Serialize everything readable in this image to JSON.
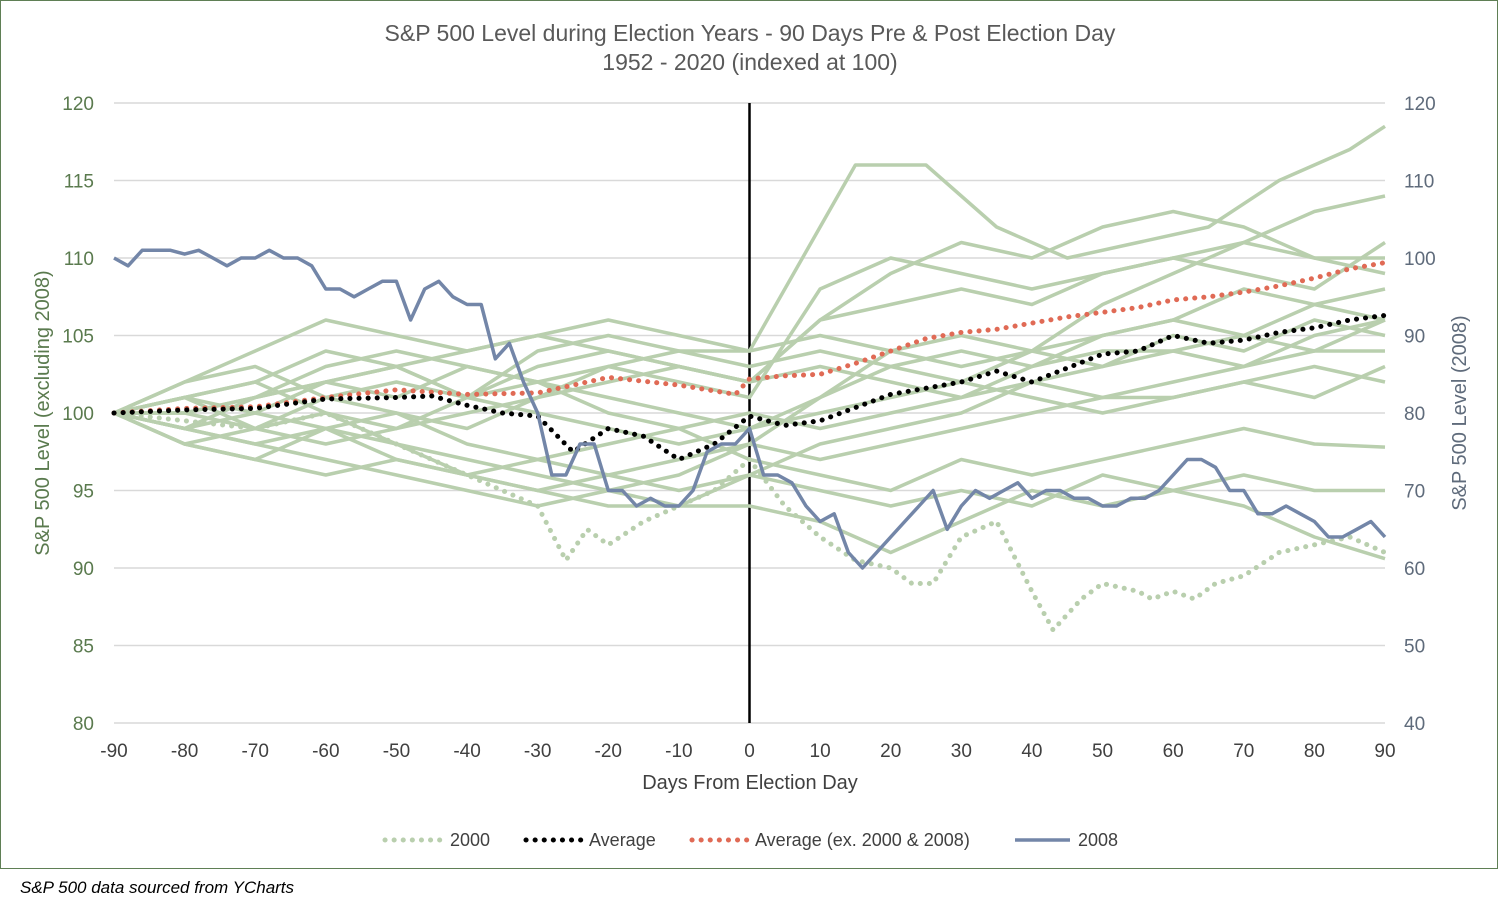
{
  "chart_data": {
    "type": "line",
    "title": "S&P 500 Level during Election Years - 90 Days Pre & Post Election Day",
    "subtitle": "1952 - 2020 (indexed at 100)",
    "xlabel": "Days From Election Day",
    "ylabel_left": "S&P 500 Level (excluding 2008)",
    "ylabel_right": "S&P 500 Level (2008)",
    "xlim": [
      -90,
      90
    ],
    "ylim_left": [
      80,
      120
    ],
    "ylim_right": [
      40,
      120
    ],
    "x_ticks": [
      "-90",
      "-80",
      "-70",
      "-60",
      "-50",
      "-40",
      "-30",
      "-20",
      "-10",
      "0",
      "10",
      "20",
      "30",
      "40",
      "50",
      "60",
      "70",
      "80",
      "90"
    ],
    "y_ticks_left": [
      "120",
      "115",
      "110",
      "105",
      "100",
      "95",
      "90",
      "85",
      "80"
    ],
    "y_ticks_right": [
      "120",
      "110",
      "100",
      "90",
      "80",
      "70",
      "60",
      "50",
      "40"
    ],
    "grid": true,
    "vertical_marker_x": 0,
    "legend_position": "bottom",
    "colors": {
      "background_years": "#b9cfae",
      "s2000": "#b9cfae",
      "average": "#000000",
      "average_ex": "#e06a55",
      "s2008": "#7386a8",
      "gridline": "#d9d9d9"
    },
    "background_series": [
      {
        "x": [
          -90,
          -80,
          -70,
          -60,
          -50,
          -45,
          -40,
          -30,
          -20,
          -10,
          0,
          10,
          20,
          30,
          40,
          50,
          60,
          70,
          80,
          90
        ],
        "values": [
          100,
          101,
          102,
          104,
          103,
          102,
          101,
          103,
          104,
          103,
          102,
          106,
          109,
          111,
          110,
          112,
          113,
          112,
          110,
          110
        ]
      },
      {
        "x": [
          -90,
          -80,
          -70,
          -60,
          -50,
          -40,
          -30,
          -20,
          -10,
          0,
          10,
          15,
          25,
          35,
          45,
          55,
          65,
          75,
          85,
          90
        ],
        "values": [
          100,
          99,
          101,
          102,
          103,
          101,
          104,
          105,
          104,
          104,
          112,
          116,
          116,
          112,
          110,
          111,
          112,
          115,
          117,
          118.5
        ]
      },
      {
        "x": [
          -90,
          -80,
          -70,
          -60,
          -50,
          -40,
          -30,
          -20,
          -10,
          0,
          10,
          20,
          30,
          40,
          50,
          60,
          70,
          80,
          90
        ],
        "values": [
          100,
          102,
          103,
          101,
          100,
          99,
          101,
          103,
          102,
          101,
          108,
          110,
          109,
          108,
          109,
          110,
          111,
          113,
          114
        ]
      },
      {
        "x": [
          -90,
          -80,
          -70,
          -60,
          -50,
          -40,
          -30,
          -20,
          -10,
          0,
          10,
          20,
          30,
          40,
          50,
          60,
          70,
          80,
          90
        ],
        "values": [
          100,
          98,
          99,
          100,
          98,
          97,
          96,
          95,
          96,
          98,
          101,
          103,
          104,
          103,
          105,
          106,
          108,
          107,
          106
        ]
      },
      {
        "x": [
          -90,
          -80,
          -70,
          -60,
          -50,
          -40,
          -30,
          -20,
          -10,
          0,
          10,
          20,
          30,
          40,
          50,
          60,
          70,
          80,
          90
        ],
        "values": [
          100,
          101,
          100,
          102,
          101,
          103,
          102,
          101,
          100,
          99,
          101,
          104,
          105,
          104,
          107,
          109,
          111,
          110,
          109
        ]
      },
      {
        "x": [
          -90,
          -80,
          -70,
          -60,
          -50,
          -40,
          -30,
          -20,
          -10,
          0,
          10,
          20,
          30,
          40,
          50,
          60,
          70,
          80,
          90
        ],
        "values": [
          100,
          99,
          98,
          97,
          96,
          95,
          94,
          95,
          94,
          96,
          98,
          99,
          100,
          102,
          103,
          104,
          105,
          104,
          106
        ]
      },
      {
        "x": [
          -90,
          -80,
          -70,
          -60,
          -50,
          -40,
          -30,
          -20,
          -10,
          0,
          10,
          20,
          30,
          40,
          50,
          60,
          70,
          80,
          90
        ],
        "values": [
          100,
          100,
          101,
          103,
          104,
          103,
          102,
          100,
          99,
          97,
          96,
          95,
          97,
          96,
          97,
          98,
          99,
          98,
          97.8
        ]
      },
      {
        "x": [
          -90,
          -80,
          -70,
          -60,
          -50,
          -40,
          -30,
          -20,
          -10,
          0,
          10,
          20,
          30,
          40,
          50,
          60,
          70,
          80,
          90
        ],
        "values": [
          100,
          98,
          97,
          99,
          98,
          96,
          95,
          94,
          94,
          94,
          93,
          91,
          93,
          95,
          94,
          95,
          94,
          92,
          90.6
        ]
      },
      {
        "x": [
          -90,
          -80,
          -70,
          -60,
          -50,
          -40,
          -30,
          -20,
          -10,
          0,
          10,
          20,
          30,
          40,
          50,
          60,
          70,
          80,
          90
        ],
        "values": [
          100,
          101,
          99,
          98,
          99,
          100,
          101,
          102,
          103,
          102,
          103,
          102,
          101,
          103,
          104,
          104,
          103,
          105,
          106
        ]
      },
      {
        "x": [
          -90,
          -80,
          -70,
          -60,
          -50,
          -40,
          -30,
          -20,
          -10,
          0,
          10,
          20,
          30,
          40,
          50,
          60,
          70,
          80,
          90
        ],
        "values": [
          100,
          102,
          104,
          106,
          105,
          104,
          105,
          106,
          105,
          104,
          105,
          104,
          103,
          104,
          105,
          106,
          105,
          107,
          108
        ]
      },
      {
        "x": [
          -90,
          -80,
          -70,
          -60,
          -50,
          -40,
          -30,
          -20,
          -10,
          0,
          10,
          20,
          30,
          40,
          50,
          60,
          70,
          80,
          90
        ],
        "values": [
          100,
          99,
          100,
          99,
          100,
          98,
          97,
          98,
          99,
          100,
          99,
          100,
          101,
          102,
          101,
          102,
          103,
          104,
          104
        ]
      },
      {
        "x": [
          -90,
          -80,
          -70,
          -60,
          -50,
          -40,
          -30,
          -20,
          -10,
          0,
          10,
          20,
          30,
          40,
          50,
          60,
          70,
          80,
          90
        ],
        "values": [
          100,
          100,
          99,
          101,
          102,
          101,
          100,
          99,
          98,
          99,
          100,
          101,
          102,
          101,
          100,
          101,
          102,
          101,
          103
        ]
      },
      {
        "x": [
          -90,
          -80,
          -70,
          -60,
          -50,
          -40,
          -30,
          -20,
          -10,
          0,
          10,
          20,
          30,
          40,
          50,
          60,
          70,
          80,
          90
        ],
        "values": [
          100,
          101,
          102,
          100,
          99,
          101,
          102,
          103,
          104,
          103,
          104,
          103,
          102,
          104,
          103,
          105,
          104,
          106,
          105
        ]
      },
      {
        "x": [
          -90,
          -80,
          -70,
          -60,
          -50,
          -40,
          -30,
          -20,
          -10,
          0,
          10,
          20,
          30,
          40,
          50,
          60,
          70,
          80,
          90
        ],
        "values": [
          100,
          98,
          97,
          96,
          97,
          96,
          95,
          96,
          97,
          98,
          97,
          98,
          99,
          100,
          101,
          101,
          102,
          103,
          102
        ]
      },
      {
        "x": [
          -90,
          -80,
          -70,
          -60,
          -50,
          -40,
          -30,
          -20,
          -10,
          0,
          10,
          20,
          30,
          40,
          50,
          60,
          70,
          80,
          90
        ],
        "values": [
          100,
          100,
          101,
          102,
          103,
          104,
          105,
          104,
          103,
          102,
          106,
          107,
          108,
          107,
          109,
          110,
          109,
          108,
          111
        ]
      },
      {
        "x": [
          -90,
          -80,
          -70,
          -60,
          -50,
          -40,
          -30,
          -20,
          -10,
          0,
          10,
          20,
          30,
          40,
          50,
          60,
          70,
          80,
          90
        ],
        "values": [
          100,
          99,
          98,
          99,
          97,
          96,
          97,
          96,
          95,
          96,
          95,
          94,
          95,
          94,
          96,
          95,
          96,
          95,
          95
        ]
      }
    ],
    "series": [
      {
        "name": "2000",
        "style": "dotted",
        "axis": "left",
        "x": [
          -90,
          -80,
          -70,
          -60,
          -50,
          -40,
          -35,
          -30,
          -26,
          -23,
          -20,
          -15,
          -10,
          -5,
          0,
          5,
          10,
          15,
          20,
          23,
          26,
          30,
          35,
          40,
          43,
          47,
          50,
          55,
          57,
          60,
          63,
          66,
          70,
          75,
          80,
          85,
          90
        ],
        "values": [
          100,
          99.5,
          99,
          100,
          98,
          96,
          95,
          94,
          90.5,
          92.5,
          91.5,
          93,
          94,
          95,
          97,
          94,
          92,
          90.5,
          90,
          89,
          89,
          92,
          93,
          88.5,
          86,
          88,
          89,
          88.5,
          88,
          88.5,
          88,
          89,
          89.5,
          91,
          91.5,
          92,
          91
        ]
      },
      {
        "name": "Average",
        "style": "dotted",
        "axis": "left",
        "x": [
          -90,
          -80,
          -70,
          -60,
          -50,
          -45,
          -40,
          -35,
          -30,
          -25,
          -20,
          -15,
          -10,
          -5,
          0,
          5,
          10,
          20,
          30,
          35,
          40,
          50,
          55,
          60,
          65,
          70,
          75,
          80,
          85,
          90
        ],
        "values": [
          100,
          100.2,
          100.3,
          100.9,
          101,
          101.1,
          100.5,
          100,
          99.8,
          97.5,
          99,
          98.5,
          97,
          98,
          99.8,
          99.2,
          99.5,
          101.2,
          102,
          102.7,
          102,
          103.8,
          104,
          105,
          104.5,
          104.7,
          105.2,
          105.5,
          106,
          106.3
        ]
      },
      {
        "name": "Average (ex. 2000 & 2008)",
        "style": "dotted",
        "axis": "left",
        "x": [
          -90,
          -80,
          -70,
          -60,
          -50,
          -40,
          -30,
          -20,
          -10,
          -2,
          0,
          5,
          10,
          15,
          20,
          25,
          30,
          35,
          40,
          45,
          50,
          55,
          60,
          65,
          70,
          75,
          80,
          85,
          90
        ],
        "values": [
          100,
          100.3,
          100.4,
          101,
          101.5,
          101.2,
          101.3,
          102.3,
          101.8,
          101.2,
          102.2,
          102.4,
          102.5,
          103.2,
          104,
          104.8,
          105.2,
          105.4,
          105.8,
          106.2,
          106.5,
          106.8,
          107.3,
          107.5,
          107.8,
          108.2,
          108.7,
          109.3,
          109.7
        ]
      },
      {
        "name": "2008",
        "style": "solid",
        "axis": "right",
        "x": [
          -90,
          -88,
          -86,
          -84,
          -82,
          -80,
          -78,
          -76,
          -74,
          -72,
          -70,
          -68,
          -66,
          -64,
          -62,
          -60,
          -58,
          -56,
          -54,
          -52,
          -50,
          -48,
          -46,
          -44,
          -42,
          -40,
          -38,
          -36,
          -34,
          -32,
          -30,
          -28,
          -26,
          -24,
          -22,
          -20,
          -18,
          -16,
          -14,
          -12,
          -10,
          -8,
          -6,
          -4,
          -2,
          0,
          2,
          4,
          6,
          8,
          10,
          12,
          14,
          16,
          18,
          20,
          22,
          24,
          26,
          28,
          30,
          32,
          34,
          36,
          38,
          40,
          42,
          44,
          46,
          48,
          50,
          52,
          54,
          56,
          58,
          60,
          62,
          64,
          66,
          68,
          70,
          72,
          74,
          76,
          78,
          80,
          82,
          84,
          86,
          88,
          90
        ],
        "values": [
          100,
          99,
          101,
          101,
          101,
          100.5,
          101,
          100,
          99,
          100,
          100,
          101,
          100,
          100,
          99,
          96,
          96,
          95,
          96,
          97,
          97,
          92,
          96,
          97,
          95,
          94,
          94,
          87,
          89,
          84,
          80,
          72,
          72,
          76,
          76,
          70,
          70,
          68,
          69,
          68,
          68,
          70,
          75,
          76,
          76,
          78,
          72,
          72,
          71,
          68,
          66,
          67,
          62,
          60,
          62,
          64,
          66,
          68,
          70,
          65,
          68,
          70,
          69,
          70,
          71,
          69,
          70,
          70,
          69,
          69,
          68,
          68,
          69,
          69,
          70,
          72,
          74,
          74,
          73,
          70,
          70,
          67,
          67,
          68,
          67,
          66,
          64,
          64,
          65,
          66,
          64
        ]
      }
    ],
    "legend": [
      "2000",
      "Average",
      "Average (ex. 2000 & 2008)",
      "2008"
    ],
    "source_note": "S&P 500 data sourced from YCharts"
  }
}
